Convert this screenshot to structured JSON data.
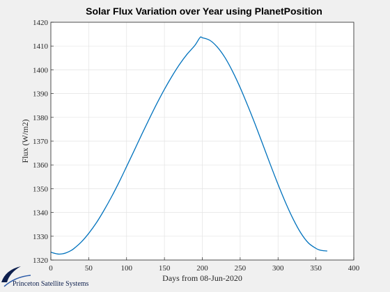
{
  "chart_data": {
    "type": "line",
    "title": "Solar Flux Variation over Year using PlanetPosition",
    "xlabel": "Days from 08-Jun-2020",
    "ylabel": "Flux (W/m2)",
    "xlim": [
      0,
      400
    ],
    "ylim": [
      1320,
      1420
    ],
    "xticks": [
      0,
      50,
      100,
      150,
      200,
      250,
      300,
      350,
      400
    ],
    "yticks": [
      1320,
      1330,
      1340,
      1350,
      1360,
      1370,
      1380,
      1390,
      1400,
      1410,
      1420
    ],
    "grid": true,
    "series": [
      {
        "color": "#0072bd",
        "x": [
          0,
          5,
          10,
          15,
          20,
          25,
          30,
          40,
          50,
          60,
          70,
          80,
          90,
          100,
          110,
          120,
          130,
          140,
          150,
          160,
          170,
          180,
          190,
          197,
          200,
          210,
          220,
          230,
          240,
          250,
          260,
          270,
          280,
          290,
          300,
          310,
          320,
          330,
          340,
          350,
          355,
          360,
          365
        ],
        "y": [
          1323.3,
          1322.8,
          1322.5,
          1322.6,
          1323.0,
          1323.7,
          1324.7,
          1327.5,
          1331.2,
          1335.6,
          1340.8,
          1346.5,
          1352.7,
          1359.3,
          1366.0,
          1372.8,
          1379.4,
          1385.8,
          1391.8,
          1397.3,
          1402.3,
          1406.6,
          1410.2,
          1413.6,
          1413.5,
          1412.4,
          1409.5,
          1405.1,
          1399.3,
          1392.5,
          1384.9,
          1376.9,
          1368.5,
          1360.0,
          1351.8,
          1344.1,
          1337.2,
          1331.4,
          1327.2,
          1324.9,
          1324.2,
          1323.9,
          1323.8
        ]
      }
    ]
  },
  "footer": {
    "logo_text": "Princeton Satellite Systems"
  }
}
